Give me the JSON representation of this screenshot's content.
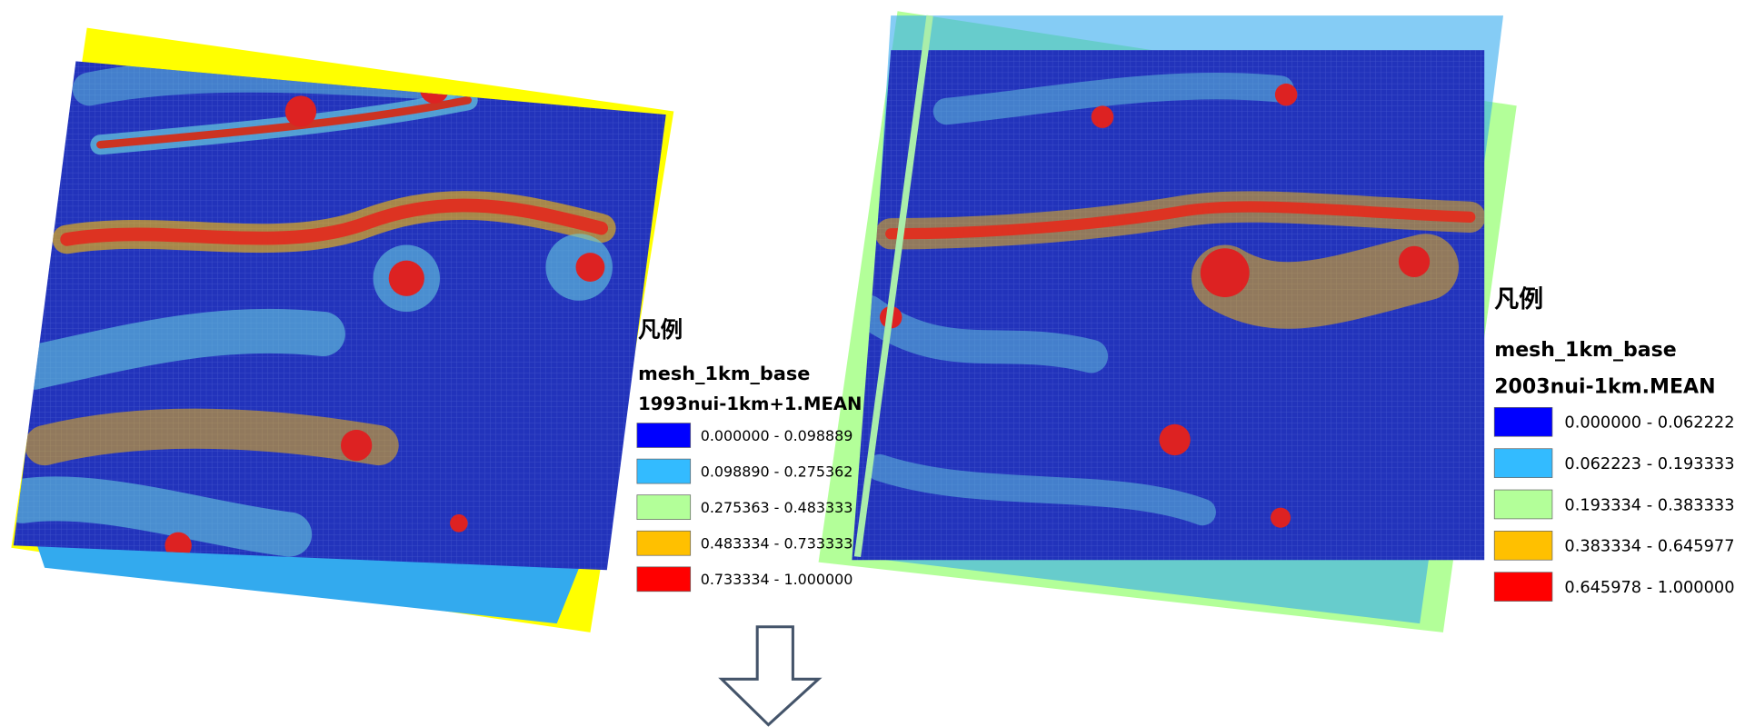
{
  "legends": [
    {
      "heading": "凡例",
      "layer": "mesh_1km_base",
      "field": "1993nui-1km+1.MEAN",
      "classes": [
        {
          "label": "0.000000 - 0.098889",
          "color": "#0000ff"
        },
        {
          "label": "0.098890 - 0.275362",
          "color": "#33bbff"
        },
        {
          "label": "0.275363 - 0.483333",
          "color": "#b3ff99"
        },
        {
          "label": "0.483334 - 0.733333",
          "color": "#ffc000"
        },
        {
          "label": "0.733334 - 1.000000",
          "color": "#ff0000"
        }
      ]
    },
    {
      "heading": "凡例",
      "layer": "mesh_1km_base",
      "field": "2003nui-1km.MEAN",
      "classes": [
        {
          "label": "0.000000 - 0.062222",
          "color": "#0000ff"
        },
        {
          "label": "0.062223 - 0.193333",
          "color": "#33bbff"
        },
        {
          "label": "0.193334 - 0.383333",
          "color": "#b3ff99"
        },
        {
          "label": "0.383334 - 0.645977",
          "color": "#ffc000"
        },
        {
          "label": "0.645978 - 1.000000",
          "color": "#ff0000"
        }
      ]
    }
  ]
}
